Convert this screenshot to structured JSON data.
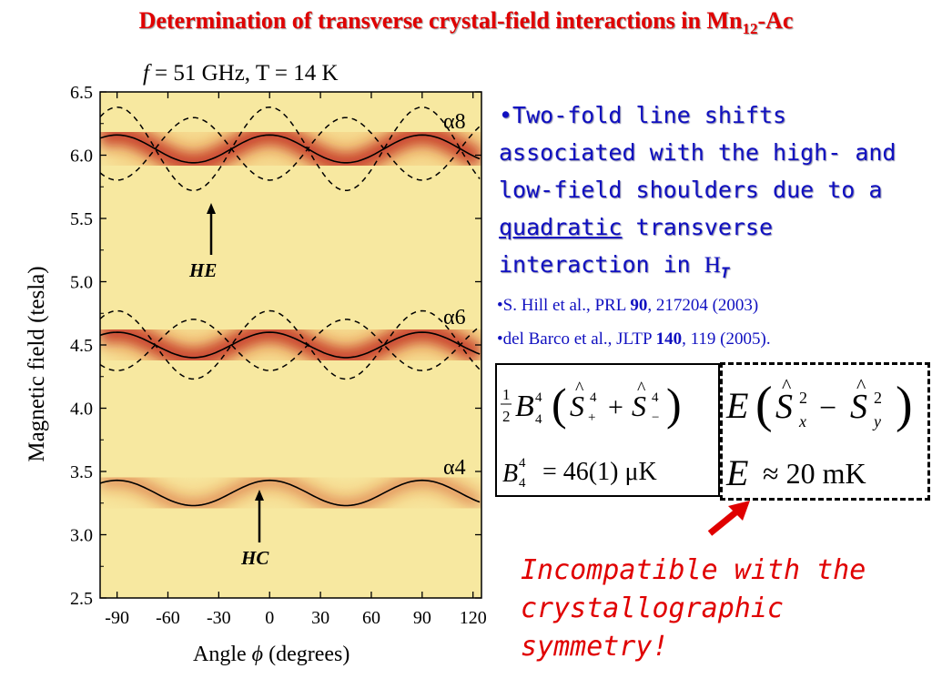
{
  "title": {
    "main": "Determination of transverse crystal-field interactions in Mn",
    "sub": "12",
    "tail": "-Ac"
  },
  "plot": {
    "header_f": "f",
    "header_rest": " = 51 GHz, T = 14 K",
    "xlabel_prefix": "Angle ",
    "xlabel_phi": "ϕ",
    "xlabel_suffix": " (degrees)",
    "ylabel": "Magnetic field (tesla)",
    "labels": {
      "alpha8": "α8",
      "alpha6": "α6",
      "alpha4": "α4",
      "he": "HE",
      "hc": "HC"
    },
    "colors": {
      "peak": "#c0281c",
      "background": "#f7e8a0",
      "dashed": "#000000"
    }
  },
  "chart_data": {
    "type": "heatmap",
    "title": "f = 51 GHz, T = 14 K",
    "xlabel": "Angle ϕ (degrees)",
    "ylabel": "Magnetic field (tesla)",
    "xlim": [
      -100,
      125
    ],
    "ylim": [
      2.5,
      6.5
    ],
    "xticks": [
      -90,
      -60,
      -30,
      0,
      30,
      60,
      90,
      120
    ],
    "yticks": [
      2.5,
      3.0,
      3.5,
      4.0,
      4.5,
      5.0,
      5.5,
      6.0,
      6.5
    ],
    "ytick_labels": [
      "2.5",
      "3.0",
      "3.5",
      "4.0",
      "4.5",
      "5.0",
      "5.5",
      "6.0",
      "6.5"
    ],
    "series": [
      {
        "label": "α8",
        "center": 6.05,
        "amplitude": 0.11,
        "dashed_center": 6.05,
        "dashed_amplitude": 0.33
      },
      {
        "label": "α6",
        "center": 4.5,
        "amplitude": 0.1,
        "dashed_center": 4.5,
        "dashed_amplitude": 0.27
      },
      {
        "label": "α4",
        "center": 3.33,
        "amplitude": 0.1
      }
    ],
    "annotations": [
      {
        "text": "HE",
        "x": -30,
        "y": 5.25
      },
      {
        "text": "HC",
        "x": -5,
        "y": 2.95
      }
    ]
  },
  "bullet_main": {
    "prefix": "•Two-fold line shifts associated with the high- and low-field shoulders due to a ",
    "underline": "quadratic",
    "suffix": " transverse interaction in ",
    "h": "H",
    "h_sub": "T"
  },
  "refs": [
    {
      "prefix": "•S. Hill et al., PRL ",
      "vol": "90",
      "suffix": ", 217204 (2003)"
    },
    {
      "prefix": "•del Barco et al., JLTP ",
      "vol": "140",
      "suffix": ", 119 (2005)."
    }
  ],
  "box1": {
    "value": "= 46(1) μK"
  },
  "box2": {
    "approx": "≈ 20 mK"
  },
  "conclusion": "Incompatible with the crystallographic symmetry!"
}
